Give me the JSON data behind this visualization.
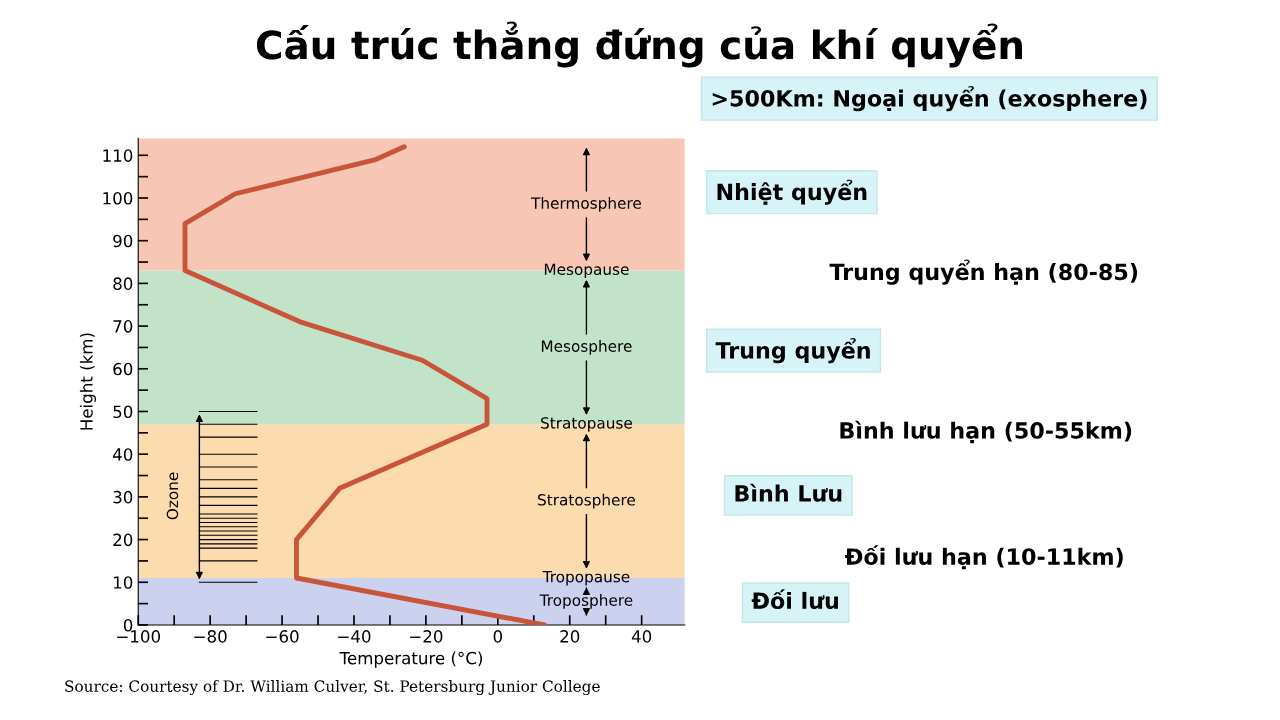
{
  "chart_data": {
    "type": "line",
    "title": "Cấu trúc thẳng đứng của khí quyển",
    "xlabel": "Temperature (°C)",
    "ylabel": "Height (km)",
    "series": [
      {
        "color": "#c8553a",
        "x": [
          13,
          -56,
          -56,
          -44,
          -3,
          -3,
          -21,
          -55,
          -87,
          -87,
          -73,
          -34,
          -26
        ],
        "values": [
          0,
          11,
          20,
          32,
          47,
          53,
          62,
          71,
          83,
          94,
          101,
          109,
          112
        ]
      }
    ],
    "xlim": [
      -100,
      52
    ],
    "ylim": [
      0,
      114
    ],
    "xticks": [
      -100,
      {
        "value": -90,
        "label": null
      },
      -80,
      {
        "value": -70,
        "label": null
      },
      -60,
      {
        "value": -50,
        "label": null
      },
      -40,
      {
        "value": -30,
        "label": null
      },
      -20,
      {
        "value": -10,
        "label": null
      },
      0,
      {
        "value": 10,
        "label": null
      },
      20,
      {
        "value": 30,
        "label": null
      },
      40
    ],
    "yticks": [
      0,
      {
        "value": 5,
        "label": null
      },
      10,
      {
        "value": 15,
        "label": null
      },
      20,
      {
        "value": 25,
        "label": null
      },
      30,
      {
        "value": 35,
        "label": null
      },
      40,
      {
        "value": 45,
        "label": null
      },
      50,
      {
        "value": 55,
        "label": null
      },
      60,
      {
        "value": 65,
        "label": null
      },
      70,
      {
        "value": 75,
        "label": null
      },
      80,
      {
        "value": 85,
        "label": null
      },
      90,
      {
        "value": 95,
        "label": null
      },
      100,
      {
        "value": 105,
        "label": null
      },
      110
    ],
    "bands": [
      {
        "axis": "y",
        "from": 0,
        "to": 11,
        "color": "#cdd1f0",
        "label": "Troposphere"
      },
      {
        "axis": "y",
        "from": 11,
        "to": 47,
        "color": "#fcdcae",
        "label": "Stratosphere"
      },
      {
        "axis": "y",
        "from": 47,
        "to": 83,
        "color": "#c3e3c8",
        "label": "Mesosphere"
      },
      {
        "axis": "y",
        "from": 83,
        "to": 114,
        "color": "#f7c6b5",
        "label": "Thermosphere"
      }
    ],
    "grid": false,
    "marker": "none",
    "line_style": "solid",
    "annotations": [
      "Tropopause",
      "Stratopause",
      "Mesopause",
      "Ozone",
      ">500Km: Ngoại quyển (exosphere)",
      "Nhiệt quyển",
      "Trung quyển hạn (80-85)",
      "Trung quyển",
      "Bình lưu hạn (50-55km)",
      "Bình Lưu",
      "Đối lưu hạn (10-11km)",
      "Đối lưu",
      "Source: Courtesy of Dr. William Culver, St. Petersburg Junior College"
    ]
  }
}
